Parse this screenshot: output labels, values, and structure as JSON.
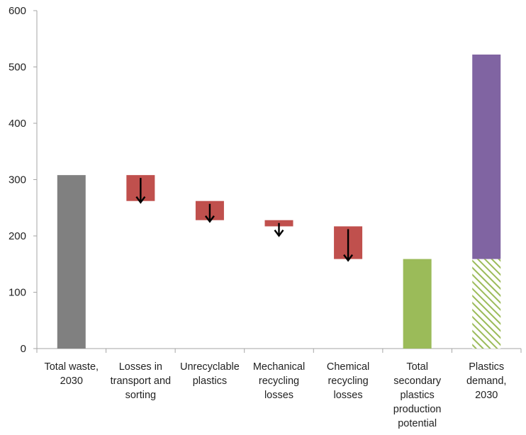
{
  "chart_data": {
    "type": "bar",
    "subtype": "waterfall",
    "title": "",
    "xlabel": "",
    "ylabel": "",
    "ylim": [
      0,
      600
    ],
    "yticks": [
      0,
      100,
      200,
      300,
      400,
      500,
      600
    ],
    "grid": false,
    "legend": "none",
    "categories": [
      [
        "Total waste,",
        "2030"
      ],
      [
        "Losses in",
        "transport and",
        "sorting"
      ],
      [
        "Unrecyclable",
        "plastics"
      ],
      [
        "Mechanical",
        "recycling",
        "losses"
      ],
      [
        "Chemical",
        "recycling",
        "losses"
      ],
      [
        "Total",
        "secondary",
        "plastics",
        "production",
        "potential"
      ],
      [
        "Plastics",
        "demand,",
        "2030"
      ]
    ],
    "bars": [
      {
        "kind": "total",
        "bottom": 0,
        "top": 308,
        "color": "#808080"
      },
      {
        "kind": "loss",
        "bottom": 262,
        "top": 308,
        "color": "#c0504d",
        "arrow": true
      },
      {
        "kind": "loss",
        "bottom": 228,
        "top": 262,
        "color": "#c0504d",
        "arrow": true
      },
      {
        "kind": "loss",
        "bottom": 217,
        "top": 228,
        "color": "#c0504d",
        "arrow": true
      },
      {
        "kind": "loss",
        "bottom": 159,
        "top": 217,
        "color": "#c0504d",
        "arrow": true
      },
      {
        "kind": "total",
        "bottom": 0,
        "top": 159,
        "color": "#9bbb59"
      },
      {
        "kind": "stacked",
        "segments": [
          {
            "bottom": 0,
            "top": 159,
            "color": "#9bbb59",
            "pattern": "hatch"
          },
          {
            "bottom": 159,
            "top": 522,
            "color": "#8064a2"
          }
        ]
      }
    ],
    "colors": {
      "total_waste": "#808080",
      "loss": "#c0504d",
      "secondary": "#9bbb59",
      "demand": "#8064a2",
      "axis": "#a6a6a6",
      "arrow": "#000000"
    }
  }
}
